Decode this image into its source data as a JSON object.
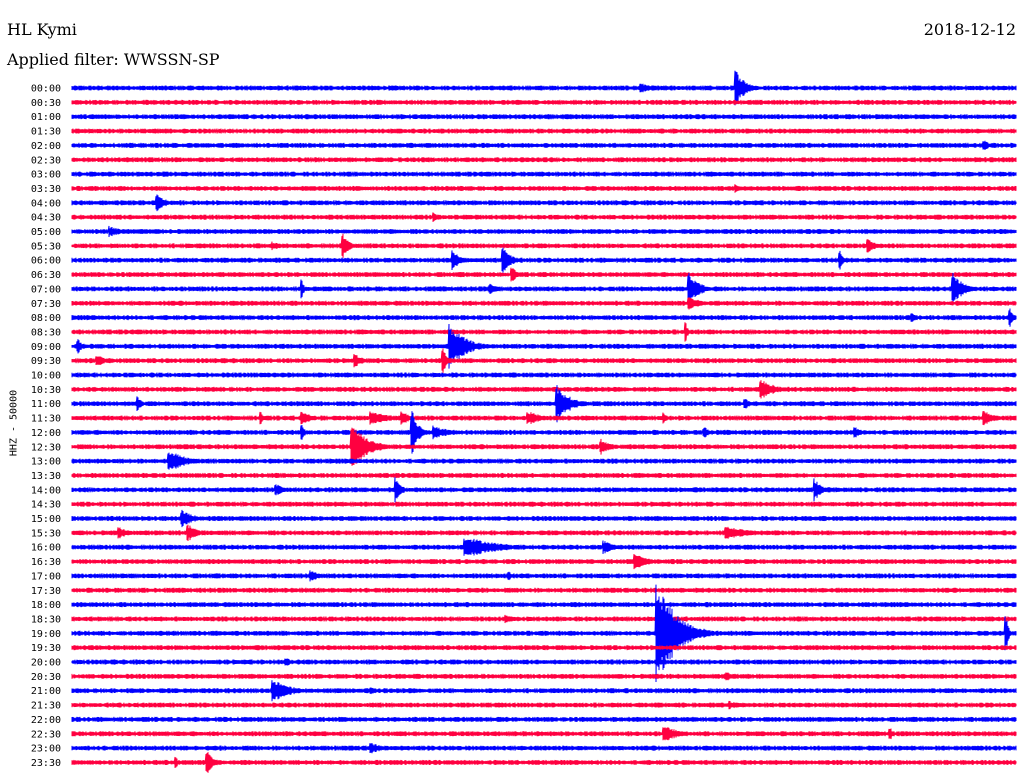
{
  "header": {
    "station": "HL Kymi",
    "date": "2018-12-12",
    "filter": "Applied filter: WWSSN-SP"
  },
  "chart_data": {
    "type": "line",
    "title": "HL Kymi",
    "subtitle": "Applied filter: WWSSN-SP",
    "ylabel": "HHZ - 50000",
    "colors": [
      "#0000ff",
      "#ff0040"
    ],
    "rows": [
      "00:00",
      "00:30",
      "01:00",
      "01:30",
      "02:00",
      "02:30",
      "03:00",
      "03:30",
      "04:00",
      "04:30",
      "05:00",
      "05:30",
      "06:00",
      "06:30",
      "07:00",
      "07:30",
      "08:00",
      "08:30",
      "09:00",
      "09:30",
      "10:00",
      "10:30",
      "11:00",
      "11:30",
      "12:00",
      "12:30",
      "13:00",
      "13:30",
      "14:00",
      "14:30",
      "15:00",
      "15:30",
      "16:00",
      "16:30",
      "17:00",
      "17:30",
      "18:00",
      "18:30",
      "19:00",
      "19:30",
      "20:00",
      "20:30",
      "21:00",
      "21:30",
      "22:00",
      "22:30",
      "23:00",
      "23:30"
    ],
    "row_duration_minutes": 30,
    "events": [
      {
        "row": 0,
        "minute": 18.1,
        "amplitude": 0.4,
        "duration_minutes": 0.8
      },
      {
        "row": 0,
        "minute": 21.1,
        "amplitude": 1.3,
        "duration_minutes": 0.9
      },
      {
        "row": 4,
        "minute": 29.0,
        "amplitude": 0.4,
        "duration_minutes": 0.5
      },
      {
        "row": 7,
        "minute": 21.1,
        "amplitude": 0.3,
        "duration_minutes": 0.6
      },
      {
        "row": 8,
        "minute": 2.7,
        "amplitude": 0.6,
        "duration_minutes": 0.9
      },
      {
        "row": 9,
        "minute": 11.5,
        "amplitude": 0.4,
        "duration_minutes": 0.5
      },
      {
        "row": 10,
        "minute": 1.2,
        "amplitude": 0.4,
        "duration_minutes": 1.2
      },
      {
        "row": 11,
        "minute": 6.4,
        "amplitude": 0.3,
        "duration_minutes": 1.0
      },
      {
        "row": 11,
        "minute": 8.6,
        "amplitude": 0.9,
        "duration_minutes": 0.6
      },
      {
        "row": 11,
        "minute": 25.3,
        "amplitude": 0.5,
        "duration_minutes": 0.8
      },
      {
        "row": 12,
        "minute": 12.1,
        "amplitude": 0.8,
        "duration_minutes": 0.6
      },
      {
        "row": 12,
        "minute": 13.7,
        "amplitude": 0.9,
        "duration_minutes": 0.8
      },
      {
        "row": 12,
        "minute": 24.4,
        "amplitude": 0.7,
        "duration_minutes": 0.3
      },
      {
        "row": 13,
        "minute": 14.0,
        "amplitude": 0.5,
        "duration_minutes": 0.6
      },
      {
        "row": 14,
        "minute": 7.3,
        "amplitude": 0.9,
        "duration_minutes": 0.2
      },
      {
        "row": 14,
        "minute": 13.3,
        "amplitude": 0.4,
        "duration_minutes": 0.8
      },
      {
        "row": 14,
        "minute": 19.6,
        "amplitude": 1.3,
        "duration_minutes": 0.9
      },
      {
        "row": 14,
        "minute": 28.0,
        "amplitude": 1.2,
        "duration_minutes": 1.0
      },
      {
        "row": 15,
        "minute": 19.6,
        "amplitude": 0.5,
        "duration_minutes": 1.2
      },
      {
        "row": 16,
        "minute": 26.7,
        "amplitude": 0.5,
        "duration_minutes": 0.3
      },
      {
        "row": 16,
        "minute": 29.8,
        "amplitude": 0.7,
        "duration_minutes": 0.4
      },
      {
        "row": 17,
        "minute": 19.5,
        "amplitude": 0.8,
        "duration_minutes": 0.2
      },
      {
        "row": 18,
        "minute": 0.2,
        "amplitude": 0.5,
        "duration_minutes": 0.4
      },
      {
        "row": 18,
        "minute": 12.0,
        "amplitude": 1.6,
        "duration_minutes": 1.5
      },
      {
        "row": 19,
        "minute": 0.8,
        "amplitude": 0.4,
        "duration_minutes": 1.0
      },
      {
        "row": 19,
        "minute": 9.0,
        "amplitude": 0.5,
        "duration_minutes": 0.8
      },
      {
        "row": 19,
        "minute": 11.8,
        "amplitude": 1.0,
        "duration_minutes": 0.4
      },
      {
        "row": 21,
        "minute": 21.9,
        "amplitude": 0.7,
        "duration_minutes": 1.4
      },
      {
        "row": 22,
        "minute": 2.1,
        "amplitude": 0.6,
        "duration_minutes": 0.3
      },
      {
        "row": 22,
        "minute": 15.4,
        "amplitude": 1.4,
        "duration_minutes": 1.2
      },
      {
        "row": 22,
        "minute": 21.4,
        "amplitude": 0.4,
        "duration_minutes": 0.5
      },
      {
        "row": 23,
        "minute": 6.0,
        "amplitude": 0.6,
        "duration_minutes": 0.2
      },
      {
        "row": 23,
        "minute": 7.3,
        "amplitude": 0.5,
        "duration_minutes": 1.0
      },
      {
        "row": 23,
        "minute": 9.5,
        "amplitude": 0.5,
        "duration_minutes": 2.0
      },
      {
        "row": 23,
        "minute": 10.5,
        "amplitude": 0.5,
        "duration_minutes": 0.8
      },
      {
        "row": 23,
        "minute": 14.5,
        "amplitude": 0.5,
        "duration_minutes": 1.5
      },
      {
        "row": 23,
        "minute": 18.8,
        "amplitude": 0.4,
        "duration_minutes": 0.3
      },
      {
        "row": 23,
        "minute": 29.0,
        "amplitude": 0.5,
        "duration_minutes": 1.2
      },
      {
        "row": 24,
        "minute": 7.3,
        "amplitude": 0.6,
        "duration_minutes": 0.3
      },
      {
        "row": 24,
        "minute": 10.8,
        "amplitude": 1.7,
        "duration_minutes": 0.6
      },
      {
        "row": 24,
        "minute": 11.5,
        "amplitude": 0.5,
        "duration_minutes": 1.5
      },
      {
        "row": 24,
        "minute": 20.1,
        "amplitude": 0.4,
        "duration_minutes": 0.6
      },
      {
        "row": 24,
        "minute": 24.9,
        "amplitude": 0.4,
        "duration_minutes": 0.8
      },
      {
        "row": 25,
        "minute": 8.9,
        "amplitude": 1.8,
        "duration_minutes": 1.4
      },
      {
        "row": 25,
        "minute": 16.8,
        "amplitude": 0.6,
        "duration_minutes": 1.0
      },
      {
        "row": 26,
        "minute": 3.1,
        "amplitude": 0.8,
        "duration_minutes": 1.5
      },
      {
        "row": 28,
        "minute": 6.5,
        "amplitude": 0.4,
        "duration_minutes": 1.0
      },
      {
        "row": 28,
        "minute": 10.3,
        "amplitude": 0.9,
        "duration_minutes": 0.5
      },
      {
        "row": 28,
        "minute": 23.6,
        "amplitude": 0.9,
        "duration_minutes": 0.6
      },
      {
        "row": 30,
        "minute": 3.5,
        "amplitude": 0.6,
        "duration_minutes": 1.2
      },
      {
        "row": 31,
        "minute": 1.5,
        "amplitude": 0.4,
        "duration_minutes": 1.0
      },
      {
        "row": 31,
        "minute": 3.7,
        "amplitude": 0.6,
        "duration_minutes": 1.0
      },
      {
        "row": 31,
        "minute": 20.8,
        "amplitude": 0.5,
        "duration_minutes": 2.2
      },
      {
        "row": 32,
        "minute": 12.5,
        "amplitude": 0.8,
        "duration_minutes": 3.0
      },
      {
        "row": 32,
        "minute": 16.9,
        "amplitude": 0.5,
        "duration_minutes": 1.0
      },
      {
        "row": 33,
        "minute": 17.9,
        "amplitude": 0.7,
        "duration_minutes": 1.2
      },
      {
        "row": 34,
        "minute": 7.6,
        "amplitude": 0.4,
        "duration_minutes": 0.8
      },
      {
        "row": 34,
        "minute": 13.9,
        "amplitude": 0.3,
        "duration_minutes": 0.5
      },
      {
        "row": 37,
        "minute": 13.8,
        "amplitude": 0.3,
        "duration_minutes": 1.0
      },
      {
        "row": 38,
        "minute": 18.6,
        "amplitude": 3.8,
        "duration_minutes": 1.8
      },
      {
        "row": 38,
        "minute": 29.7,
        "amplitude": 1.3,
        "duration_minutes": 0.2
      },
      {
        "row": 40,
        "minute": 6.8,
        "amplitude": 0.3,
        "duration_minutes": 0.8
      },
      {
        "row": 41,
        "minute": 20.8,
        "amplitude": 0.3,
        "duration_minutes": 1.2
      },
      {
        "row": 42,
        "minute": 6.4,
        "amplitude": 0.8,
        "duration_minutes": 1.6
      },
      {
        "row": 42,
        "minute": 9.5,
        "amplitude": 0.3,
        "duration_minutes": 0.5
      },
      {
        "row": 43,
        "minute": 20.9,
        "amplitude": 0.3,
        "duration_minutes": 1.2
      },
      {
        "row": 45,
        "minute": 18.8,
        "amplitude": 0.6,
        "duration_minutes": 1.5
      },
      {
        "row": 45,
        "minute": 26.0,
        "amplitude": 0.5,
        "duration_minutes": 0.3
      },
      {
        "row": 46,
        "minute": 9.5,
        "amplitude": 0.4,
        "duration_minutes": 1.2
      },
      {
        "row": 47,
        "minute": 3.3,
        "amplitude": 0.5,
        "duration_minutes": 0.2
      },
      {
        "row": 47,
        "minute": 4.3,
        "amplitude": 0.9,
        "duration_minutes": 0.6
      }
    ]
  }
}
